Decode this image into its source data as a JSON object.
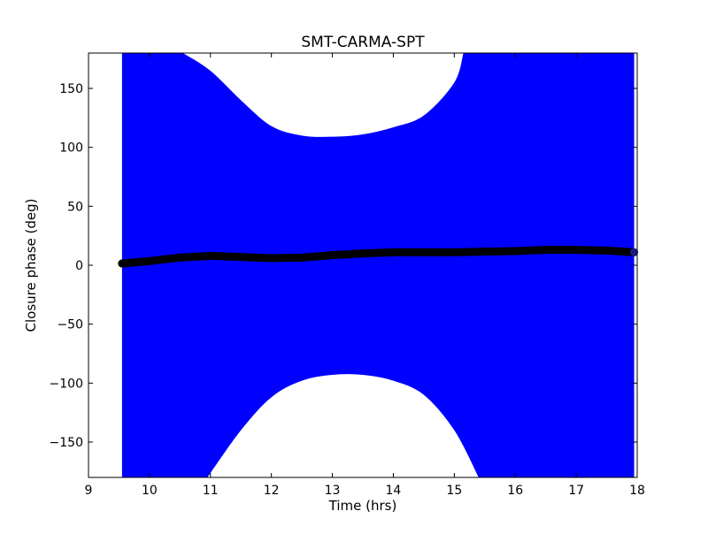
{
  "chart_data": {
    "type": "scatter",
    "title": "SMT-CARMA-SPT",
    "xlabel": "Time (hrs)",
    "ylabel": "Closure phase (deg)",
    "xlim": [
      9,
      18
    ],
    "ylim": [
      -180,
      180
    ],
    "xticks": [
      9,
      10,
      11,
      12,
      13,
      14,
      15,
      16,
      17,
      18
    ],
    "yticks": [
      -150,
      -100,
      -50,
      0,
      50,
      100,
      150
    ],
    "xtick_labels": [
      "9",
      "10",
      "11",
      "12",
      "13",
      "14",
      "15",
      "16",
      "17",
      "18"
    ],
    "ytick_labels": [
      "−150",
      "−100",
      "−50",
      "0",
      "50",
      "100",
      "150"
    ],
    "grid": false,
    "legend": "none",
    "colors": {
      "errorbar": "#0000ff",
      "marker": "#000000",
      "marker_end": "#1a1a8c"
    },
    "series": [
      {
        "kind": "points-with-errorbars",
        "x": [
          9.55,
          10.0,
          10.5,
          11.0,
          11.5,
          12.0,
          12.5,
          13.0,
          13.5,
          14.0,
          14.5,
          15.0,
          15.5,
          16.0,
          16.5,
          17.0,
          17.5,
          17.95
        ],
        "y": [
          1.5,
          3.5,
          6.5,
          8.0,
          7.0,
          6.0,
          6.5,
          8.5,
          10.0,
          11.0,
          11.0,
          11.0,
          11.5,
          12.0,
          13.0,
          13.0,
          12.5,
          11.0
        ]
      }
    ],
    "error_envelope": {
      "description_free_inner_gaps": true,
      "x_start": 9.55,
      "x_end": 17.95,
      "upper_gap": {
        "x": [
          10.55,
          11.0,
          11.5,
          12.0,
          12.5,
          13.0,
          13.5,
          14.0,
          14.5,
          15.0,
          15.15
        ],
        "lower_edge": [
          180,
          165,
          140,
          118,
          110,
          109,
          111,
          117,
          127,
          155,
          180
        ]
      },
      "lower_gap": {
        "x": [
          10.95,
          11.5,
          12.0,
          12.5,
          13.0,
          13.5,
          14.0,
          14.5,
          15.0,
          15.4
        ],
        "upper_edge": [
          -180,
          -140,
          -112,
          -98,
          -93,
          -93,
          -98,
          -110,
          -140,
          -180
        ]
      }
    }
  }
}
